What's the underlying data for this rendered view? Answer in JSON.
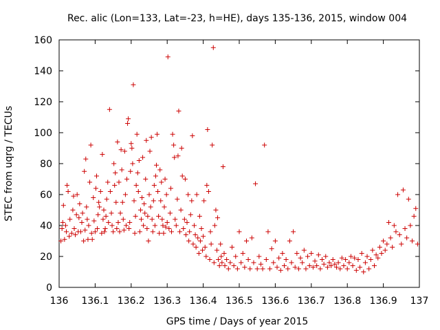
{
  "chart_data": {
    "type": "scatter",
    "title": "Rec. alic (Lon=133, Lat=-23, h=HE), days 135-136, 2015, window 004",
    "xlabel": "GPS time / Days of year 2015",
    "ylabel": "STEC from uqrg / TECUs",
    "xlim": [
      136,
      137
    ],
    "ylim": [
      0,
      160
    ],
    "x_ticks": [
      "136",
      "136.1",
      "136.2",
      "136.3",
      "136.4",
      "136.5",
      "136.6",
      "136.7",
      "136.8",
      "136.9",
      "137"
    ],
    "y_ticks": [
      "0",
      "20",
      "40",
      "60",
      "80",
      "100",
      "120",
      "140",
      "160"
    ],
    "grid": false,
    "marker": "+",
    "marker_color": "#cc0000",
    "series": [
      {
        "points": [
          [
            136.005,
            30
          ],
          [
            136.008,
            38
          ],
          [
            136.01,
            42
          ],
          [
            136.012,
            53
          ],
          [
            136.015,
            31
          ],
          [
            136.018,
            40
          ],
          [
            136.02,
            36
          ],
          [
            136.022,
            66
          ],
          [
            136.025,
            62
          ],
          [
            136.028,
            33
          ],
          [
            136.03,
            44
          ],
          [
            136.035,
            35
          ],
          [
            136.038,
            50
          ],
          [
            136.04,
            59
          ],
          [
            136.042,
            38
          ],
          [
            136.045,
            34
          ],
          [
            136.048,
            47
          ],
          [
            136.05,
            60
          ],
          [
            136.053,
            36
          ],
          [
            136.055,
            45
          ],
          [
            136.057,
            54
          ],
          [
            136.06,
            36
          ],
          [
            136.063,
            42
          ],
          [
            136.065,
            48
          ],
          [
            136.068,
            30
          ],
          [
            136.07,
            75
          ],
          [
            136.072,
            37
          ],
          [
            136.074,
            83
          ],
          [
            136.076,
            52
          ],
          [
            136.078,
            44
          ],
          [
            136.08,
            31
          ],
          [
            136.082,
            40
          ],
          [
            136.085,
            68
          ],
          [
            136.088,
            92
          ],
          [
            136.09,
            35
          ],
          [
            136.092,
            31
          ],
          [
            136.095,
            58
          ],
          [
            136.097,
            43
          ],
          [
            136.1,
            36
          ],
          [
            136.102,
            64
          ],
          [
            136.104,
            72
          ],
          [
            136.106,
            38
          ],
          [
            136.108,
            47
          ],
          [
            136.11,
            55
          ],
          [
            136.112,
            52
          ],
          [
            136.115,
            62
          ],
          [
            136.118,
            35
          ],
          [
            136.12,
            86
          ],
          [
            136.122,
            44
          ],
          [
            136.124,
            50
          ],
          [
            136.126,
            36
          ],
          [
            136.128,
            38
          ],
          [
            136.13,
            46
          ],
          [
            136.132,
            57
          ],
          [
            136.135,
            68
          ],
          [
            136.137,
            42
          ],
          [
            136.14,
            115
          ],
          [
            136.142,
            62
          ],
          [
            136.145,
            48
          ],
          [
            136.147,
            40
          ],
          [
            136.15,
            36
          ],
          [
            136.152,
            80
          ],
          [
            136.154,
            66
          ],
          [
            136.156,
            74
          ],
          [
            136.158,
            55
          ],
          [
            136.16,
            38
          ],
          [
            136.162,
            94
          ],
          [
            136.164,
            42
          ],
          [
            136.166,
            68
          ],
          [
            136.168,
            36
          ],
          [
            136.17,
            48
          ],
          [
            136.172,
            89
          ],
          [
            136.174,
            76
          ],
          [
            136.176,
            55
          ],
          [
            136.178,
            44
          ],
          [
            136.18,
            37
          ],
          [
            136.182,
            88
          ],
          [
            136.184,
            60
          ],
          [
            136.186,
            40
          ],
          [
            136.188,
            70
          ],
          [
            136.19,
            106
          ],
          [
            136.192,
            109
          ],
          [
            136.194,
            38
          ],
          [
            136.196,
            42
          ],
          [
            136.198,
            75
          ],
          [
            136.2,
            93
          ],
          [
            136.202,
            90
          ],
          [
            136.204,
            80
          ],
          [
            136.206,
            131
          ],
          [
            136.208,
            56
          ],
          [
            136.21,
            35
          ],
          [
            136.212,
            46
          ],
          [
            136.214,
            66
          ],
          [
            136.216,
            99
          ],
          [
            136.218,
            74
          ],
          [
            136.22,
            62
          ],
          [
            136.222,
            82
          ],
          [
            136.224,
            36
          ],
          [
            136.226,
            50
          ],
          [
            136.228,
            44
          ],
          [
            136.23,
            58
          ],
          [
            136.232,
            84
          ],
          [
            136.234,
            40
          ],
          [
            136.236,
            54
          ],
          [
            136.238,
            48
          ],
          [
            136.24,
            70
          ],
          [
            136.242,
            95
          ],
          [
            136.244,
            38
          ],
          [
            136.246,
            46
          ],
          [
            136.248,
            30
          ],
          [
            136.25,
            60
          ],
          [
            136.252,
            88
          ],
          [
            136.254,
            52
          ],
          [
            136.256,
            97
          ],
          [
            136.258,
            44
          ],
          [
            136.26,
            36
          ],
          [
            136.262,
            56
          ],
          [
            136.264,
            66
          ],
          [
            136.266,
            40
          ],
          [
            136.268,
            72
          ],
          [
            136.27,
            79
          ],
          [
            136.272,
            99
          ],
          [
            136.274,
            62
          ],
          [
            136.276,
            46
          ],
          [
            136.278,
            35
          ],
          [
            136.28,
            76
          ],
          [
            136.282,
            56
          ],
          [
            136.284,
            68
          ],
          [
            136.286,
            44
          ],
          [
            136.288,
            40
          ],
          [
            136.29,
            35
          ],
          [
            136.292,
            52
          ],
          [
            136.294,
            70
          ],
          [
            136.296,
            39
          ],
          [
            136.298,
            60
          ],
          [
            136.3,
            42
          ],
          [
            136.302,
            149
          ],
          [
            136.305,
            38
          ],
          [
            136.308,
            48
          ],
          [
            136.31,
            64
          ],
          [
            136.312,
            36
          ],
          [
            136.315,
            99
          ],
          [
            136.318,
            92
          ],
          [
            136.32,
            84
          ],
          [
            136.322,
            44
          ],
          [
            136.325,
            40
          ],
          [
            136.328,
            57
          ],
          [
            136.33,
            85
          ],
          [
            136.332,
            114
          ],
          [
            136.335,
            36
          ],
          [
            136.338,
            50
          ],
          [
            136.34,
            90
          ],
          [
            136.342,
            72
          ],
          [
            136.345,
            38
          ],
          [
            136.348,
            44
          ],
          [
            136.35,
            70
          ],
          [
            136.352,
            34
          ],
          [
            136.355,
            42
          ],
          [
            136.358,
            60
          ],
          [
            136.36,
            30
          ],
          [
            136.362,
            36
          ],
          [
            136.365,
            47
          ],
          [
            136.368,
            56
          ],
          [
            136.37,
            98
          ],
          [
            136.372,
            28
          ],
          [
            136.375,
            40
          ],
          [
            136.378,
            34
          ],
          [
            136.38,
            26
          ],
          [
            136.382,
            60
          ],
          [
            136.385,
            32
          ],
          [
            136.388,
            22
          ],
          [
            136.39,
            46
          ],
          [
            136.392,
            30
          ],
          [
            136.395,
            38
          ],
          [
            136.398,
            24
          ],
          [
            136.4,
            33
          ],
          [
            136.402,
            56
          ],
          [
            136.405,
            26
          ],
          [
            136.408,
            20
          ],
          [
            136.41,
            66
          ],
          [
            136.412,
            102
          ],
          [
            136.415,
            62
          ],
          [
            136.418,
            18
          ],
          [
            136.42,
            36
          ],
          [
            136.422,
            28
          ],
          [
            136.425,
            92
          ],
          [
            136.428,
            155
          ],
          [
            136.43,
            16
          ],
          [
            136.432,
            40
          ],
          [
            136.435,
            50
          ],
          [
            136.438,
            24
          ],
          [
            136.44,
            45
          ],
          [
            136.442,
            18
          ],
          [
            136.445,
            14
          ],
          [
            136.448,
            28
          ],
          [
            136.45,
            20
          ],
          [
            136.452,
            16
          ],
          [
            136.455,
            78
          ],
          [
            136.458,
            22
          ],
          [
            136.46,
            14
          ],
          [
            136.465,
            18
          ],
          [
            136.47,
            12
          ],
          [
            136.475,
            16
          ],
          [
            136.48,
            26
          ],
          [
            136.485,
            14
          ],
          [
            136.49,
            20
          ],
          [
            136.495,
            12
          ],
          [
            136.5,
            36
          ],
          [
            136.505,
            16
          ],
          [
            136.51,
            22
          ],
          [
            136.515,
            13
          ],
          [
            136.52,
            30
          ],
          [
            136.525,
            18
          ],
          [
            136.53,
            12
          ],
          [
            136.535,
            32
          ],
          [
            136.54,
            16
          ],
          [
            136.545,
            67
          ],
          [
            136.55,
            12
          ],
          [
            136.555,
            20
          ],
          [
            136.56,
            15
          ],
          [
            136.565,
            12
          ],
          [
            136.57,
            92
          ],
          [
            136.575,
            18
          ],
          [
            136.58,
            36
          ],
          [
            136.585,
            12
          ],
          [
            136.59,
            25
          ],
          [
            136.595,
            16
          ],
          [
            136.6,
            30
          ],
          [
            136.605,
            13
          ],
          [
            136.61,
            19
          ],
          [
            136.615,
            11
          ],
          [
            136.62,
            22
          ],
          [
            136.625,
            14
          ],
          [
            136.63,
            18
          ],
          [
            136.635,
            12
          ],
          [
            136.64,
            30
          ],
          [
            136.645,
            16
          ],
          [
            136.65,
            36
          ],
          [
            136.655,
            13
          ],
          [
            136.66,
            22
          ],
          [
            136.665,
            12
          ],
          [
            136.67,
            19
          ],
          [
            136.675,
            16
          ],
          [
            136.68,
            24
          ],
          [
            136.685,
            12
          ],
          [
            136.69,
            20
          ],
          [
            136.695,
            14
          ],
          [
            136.7,
            22
          ],
          [
            136.705,
            13
          ],
          [
            136.71,
            17
          ],
          [
            136.715,
            14
          ],
          [
            136.72,
            21
          ],
          [
            136.725,
            12
          ],
          [
            136.73,
            18
          ],
          [
            136.735,
            15
          ],
          [
            136.74,
            20
          ],
          [
            136.745,
            13
          ],
          [
            136.75,
            16
          ],
          [
            136.755,
            14
          ],
          [
            136.76,
            18
          ],
          [
            136.765,
            15
          ],
          [
            136.77,
            13
          ],
          [
            136.775,
            16
          ],
          [
            136.78,
            12
          ],
          [
            136.785,
            19
          ],
          [
            136.79,
            14
          ],
          [
            136.795,
            18
          ],
          [
            136.8,
            12
          ],
          [
            136.805,
            16
          ],
          [
            136.81,
            20
          ],
          [
            136.815,
            14
          ],
          [
            136.82,
            19
          ],
          [
            136.825,
            11
          ],
          [
            136.83,
            18
          ],
          [
            136.835,
            13
          ],
          [
            136.84,
            22
          ],
          [
            136.845,
            10
          ],
          [
            136.85,
            16
          ],
          [
            136.855,
            20
          ],
          [
            136.86,
            12
          ],
          [
            136.865,
            18
          ],
          [
            136.87,
            24
          ],
          [
            136.875,
            14
          ],
          [
            136.88,
            21
          ],
          [
            136.885,
            19
          ],
          [
            136.89,
            26
          ],
          [
            136.895,
            22
          ],
          [
            136.9,
            30
          ],
          [
            136.905,
            24
          ],
          [
            136.91,
            28
          ],
          [
            136.915,
            42
          ],
          [
            136.92,
            32
          ],
          [
            136.925,
            26
          ],
          [
            136.93,
            40
          ],
          [
            136.935,
            36
          ],
          [
            136.94,
            60
          ],
          [
            136.945,
            34
          ],
          [
            136.95,
            28
          ],
          [
            136.955,
            63
          ],
          [
            136.96,
            38
          ],
          [
            136.965,
            32
          ],
          [
            136.97,
            57
          ],
          [
            136.975,
            40
          ],
          [
            136.98,
            30
          ],
          [
            136.985,
            46
          ],
          [
            136.99,
            51
          ],
          [
            136.995,
            28
          ]
        ]
      }
    ]
  }
}
